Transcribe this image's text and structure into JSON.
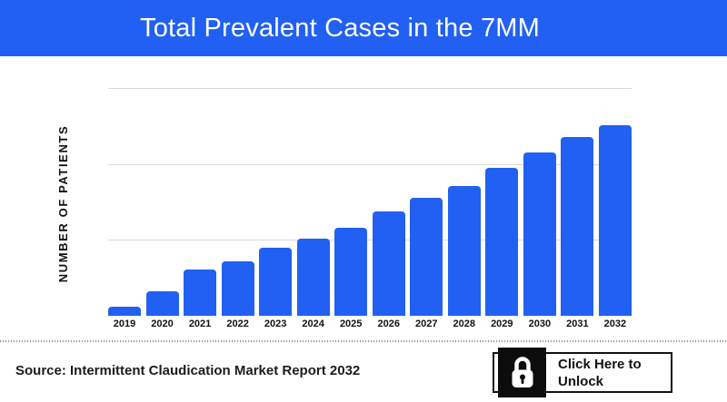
{
  "header": {
    "title": "Total Prevalent Cases in the 7MM"
  },
  "colors": {
    "header_bg": "#2160F2",
    "bar_blue": "#2160F2",
    "gridline": "#D9D9D9",
    "text_dark": "#111111"
  },
  "chart_data": {
    "type": "bar",
    "title": "Total Prevalent Cases in the 7MM",
    "xlabel": "",
    "ylabel": "NUMBER OF PATIENTS",
    "categories": [
      "2019",
      "2020",
      "2021",
      "2022",
      "2023",
      "2024",
      "2025",
      "2026",
      "2027",
      "2028",
      "2029",
      "2030",
      "2031",
      "2032"
    ],
    "values": [
      4.8,
      12.9,
      24.3,
      28.6,
      35.7,
      40.5,
      46.2,
      54.8,
      61.9,
      68.1,
      77.6,
      85.7,
      93.8,
      100
    ],
    "values_unit": "relative, % of 2032 bar height (y-axis shows no numeric tick labels)",
    "ylim": [
      0,
      120
    ],
    "grid": "horizontal, 3 light lines",
    "legend": "none",
    "bar_color": "#2160F2"
  },
  "footer": {
    "source": "Source: Intermittent Claudication Market Report 2032",
    "unlock": {
      "label": "Click Here to Unlock",
      "icon": "lock-icon"
    }
  }
}
